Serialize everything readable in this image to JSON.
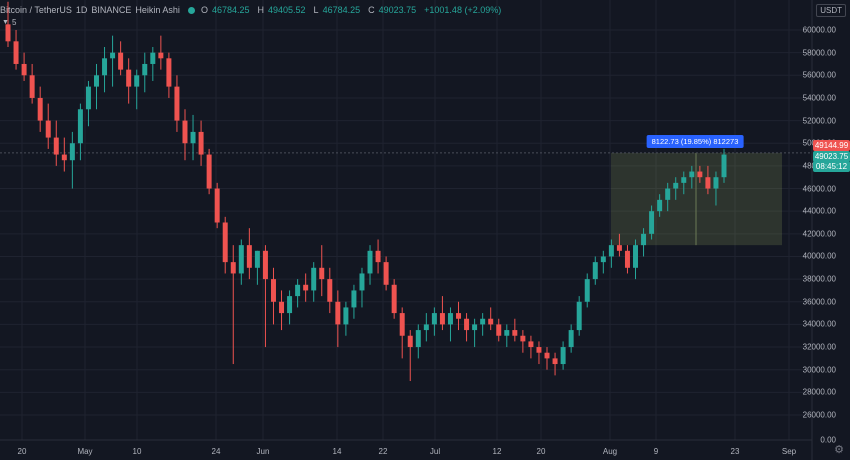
{
  "header": {
    "symbol": "Bitcoin / TetherUS",
    "interval": "1D",
    "exchange": "BINANCE",
    "chart_style": "Heikin Ashi",
    "open_label": "O",
    "open": "46784.25",
    "high_label": "H",
    "high": "49405.52",
    "low_label": "L",
    "low": "46784.25",
    "close_label": "C",
    "close": "49023.75",
    "change": "+1001.48 (+2.09%)"
  },
  "indicator_toggle": "5",
  "currency": "USDT",
  "price_tags": {
    "high_line": "49144.99",
    "last_price": "49023.75",
    "countdown": "08:45:12"
  },
  "measure_label": "8122.73 (19.85%) 812273",
  "colors": {
    "up": "#26a69a",
    "down": "#ef5350",
    "background": "#131722",
    "grid": "#1f2330",
    "measure": "#2962ff"
  },
  "chart_data": {
    "type": "candlestick",
    "style": "Heikin Ashi",
    "y_range": [
      0,
      62000
    ],
    "y_ticks": [
      "60000.00",
      "58000.00",
      "56000.00",
      "54000.00",
      "52000.00",
      "50000.00",
      "48000.00",
      "46000.00",
      "44000.00",
      "42000.00",
      "40000.00",
      "38000.00",
      "36000.00",
      "34000.00",
      "32000.00",
      "30000.00",
      "28000.00",
      "26000.00",
      "0.00"
    ],
    "x_ticks": [
      "20",
      "May",
      "10",
      "24",
      "Jun",
      "14",
      "22",
      "Jul",
      "12",
      "20",
      "Aug",
      "9",
      "23",
      "Sep"
    ],
    "candles": [
      [
        60500,
        62500,
        58500,
        59000
      ],
      [
        59000,
        60000,
        56500,
        57000
      ],
      [
        57000,
        58000,
        55500,
        56000
      ],
      [
        56000,
        57000,
        53500,
        54000
      ],
      [
        54000,
        55000,
        51000,
        52000
      ],
      [
        52000,
        53500,
        49500,
        50500
      ],
      [
        50500,
        52000,
        48000,
        49000
      ],
      [
        49000,
        50500,
        47500,
        48500
      ],
      [
        48500,
        51000,
        46000,
        50000
      ],
      [
        50000,
        53500,
        48500,
        53000
      ],
      [
        53000,
        55500,
        51500,
        55000
      ],
      [
        55000,
        57000,
        53000,
        56000
      ],
      [
        56000,
        58500,
        54500,
        57500
      ],
      [
        57500,
        59500,
        55000,
        58000
      ],
      [
        58000,
        59000,
        56000,
        56500
      ],
      [
        56500,
        57500,
        53500,
        55000
      ],
      [
        55000,
        56500,
        53000,
        56000
      ],
      [
        56000,
        58000,
        54500,
        57000
      ],
      [
        57000,
        58500,
        55500,
        58000
      ],
      [
        58000,
        59500,
        56500,
        57500
      ],
      [
        57500,
        58000,
        54000,
        55000
      ],
      [
        55000,
        56000,
        51000,
        52000
      ],
      [
        52000,
        53000,
        48500,
        50000
      ],
      [
        50000,
        52500,
        48500,
        51000
      ],
      [
        51000,
        52000,
        48000,
        49000
      ],
      [
        49000,
        49500,
        45500,
        46000
      ],
      [
        46000,
        46500,
        42500,
        43000
      ],
      [
        43000,
        43500,
        38500,
        39500
      ],
      [
        39500,
        41000,
        30500,
        38500
      ],
      [
        38500,
        41500,
        37500,
        41000
      ],
      [
        41000,
        42500,
        38000,
        39000
      ],
      [
        39000,
        40500,
        37500,
        40500
      ],
      [
        40500,
        41000,
        32000,
        38000
      ],
      [
        38000,
        39000,
        34000,
        36000
      ],
      [
        36000,
        37000,
        33500,
        35000
      ],
      [
        35000,
        37000,
        34000,
        36500
      ],
      [
        36500,
        38000,
        35500,
        37500
      ],
      [
        37500,
        38500,
        36000,
        37000
      ],
      [
        37000,
        39500,
        36000,
        39000
      ],
      [
        39000,
        41000,
        36500,
        38000
      ],
      [
        38000,
        39000,
        35000,
        36000
      ],
      [
        36000,
        37000,
        32000,
        34000
      ],
      [
        34000,
        36000,
        33000,
        35500
      ],
      [
        35500,
        37500,
        34500,
        37000
      ],
      [
        37000,
        39000,
        35500,
        38500
      ],
      [
        38500,
        41000,
        37500,
        40500
      ],
      [
        40500,
        41500,
        38500,
        39500
      ],
      [
        39500,
        40000,
        37000,
        37500
      ],
      [
        37500,
        38000,
        34500,
        35000
      ],
      [
        35000,
        35500,
        31000,
        33000
      ],
      [
        33000,
        33500,
        29000,
        32000
      ],
      [
        32000,
        34000,
        31000,
        33500
      ],
      [
        33500,
        35000,
        32500,
        34000
      ],
      [
        34000,
        35500,
        33000,
        35000
      ],
      [
        35000,
        36500,
        33500,
        34000
      ],
      [
        34000,
        35500,
        32500,
        35000
      ],
      [
        35000,
        36000,
        33500,
        34500
      ],
      [
        34500,
        35000,
        32500,
        33500
      ],
      [
        33500,
        34500,
        32000,
        34000
      ],
      [
        34000,
        35000,
        33000,
        34500
      ],
      [
        34500,
        35500,
        33500,
        34000
      ],
      [
        34000,
        34500,
        32500,
        33000
      ],
      [
        33000,
        34000,
        32000,
        33500
      ],
      [
        33500,
        34500,
        32500,
        33000
      ],
      [
        33000,
        33500,
        31500,
        32500
      ],
      [
        32500,
        33000,
        31000,
        32000
      ],
      [
        32000,
        32500,
        30500,
        31500
      ],
      [
        31500,
        32000,
        30000,
        31000
      ],
      [
        31000,
        31500,
        29500,
        30500
      ],
      [
        30500,
        32500,
        30000,
        32000
      ],
      [
        32000,
        34000,
        31500,
        33500
      ],
      [
        33500,
        36500,
        33000,
        36000
      ],
      [
        36000,
        38500,
        35500,
        38000
      ],
      [
        38000,
        40000,
        37500,
        39500
      ],
      [
        39500,
        40500,
        38500,
        40000
      ],
      [
        40000,
        41500,
        39000,
        41000
      ],
      [
        41000,
        42000,
        40000,
        40500
      ],
      [
        40500,
        41000,
        38500,
        39000
      ],
      [
        39000,
        41500,
        38000,
        41000
      ],
      [
        41000,
        42500,
        40000,
        42000
      ],
      [
        42000,
        44500,
        41500,
        44000
      ],
      [
        44000,
        45500,
        43500,
        45000
      ],
      [
        45000,
        46500,
        44000,
        46000
      ],
      [
        46000,
        47000,
        45000,
        46500
      ],
      [
        46500,
        47500,
        45500,
        47000
      ],
      [
        47000,
        48000,
        46000,
        47500
      ],
      [
        47500,
        48000,
        46500,
        47000
      ],
      [
        47000,
        48000,
        45500,
        46000
      ],
      [
        46000,
        47500,
        44500,
        47000
      ],
      [
        47000,
        49500,
        46500,
        49000
      ]
    ]
  }
}
